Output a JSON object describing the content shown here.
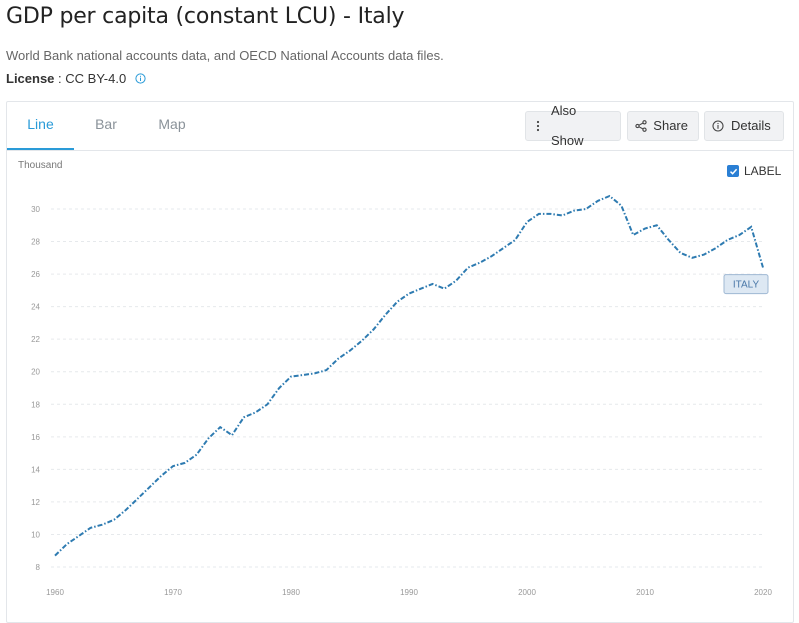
{
  "title": "GDP per capita (constant LCU) - Italy",
  "source": "World Bank national accounts data, and OECD National Accounts data files.",
  "license": {
    "label": "License",
    "value": "CC BY-4.0"
  },
  "tabs": [
    {
      "label": "Line",
      "active": true
    },
    {
      "label": "Bar",
      "active": false
    },
    {
      "label": "Map",
      "active": false
    }
  ],
  "toolbar": {
    "also_show_label": "Also Show",
    "share_label": "Share",
    "details_label": "Details"
  },
  "label_toggle": {
    "text": "LABEL",
    "checked": true
  },
  "colors": {
    "series": "#2e7bb1",
    "accent": "#2a9bd8",
    "label_bg": "#dde8f3"
  },
  "chart_data": {
    "type": "line",
    "ylabel": "Thousand",
    "ylim": [
      8,
      30
    ],
    "yticks": [
      8,
      10,
      12,
      14,
      16,
      18,
      20,
      22,
      24,
      26,
      28,
      30
    ],
    "xlim": [
      1960,
      2020
    ],
    "xticks": [
      1960,
      1970,
      1980,
      1990,
      2000,
      2010,
      2020
    ],
    "grid": true,
    "line_style": "dash-dot",
    "series": [
      {
        "name": "ITALY",
        "x": [
          1960,
          1961,
          1962,
          1963,
          1964,
          1965,
          1966,
          1967,
          1968,
          1969,
          1970,
          1971,
          1972,
          1973,
          1974,
          1975,
          1976,
          1977,
          1978,
          1979,
          1980,
          1981,
          1982,
          1983,
          1984,
          1985,
          1986,
          1987,
          1988,
          1989,
          1990,
          1991,
          1992,
          1993,
          1994,
          1995,
          1996,
          1997,
          1998,
          1999,
          2000,
          2001,
          2002,
          2003,
          2004,
          2005,
          2006,
          2007,
          2008,
          2009,
          2010,
          2011,
          2012,
          2013,
          2014,
          2015,
          2016,
          2017,
          2018,
          2019,
          2020
        ],
        "values": [
          8.7,
          9.4,
          9.9,
          10.4,
          10.6,
          10.9,
          11.5,
          12.2,
          12.9,
          13.6,
          14.2,
          14.4,
          14.9,
          15.9,
          16.6,
          16.1,
          17.2,
          17.5,
          18.0,
          19.0,
          19.7,
          19.8,
          19.9,
          20.1,
          20.8,
          21.3,
          21.9,
          22.6,
          23.5,
          24.3,
          24.8,
          25.1,
          25.4,
          25.1,
          25.6,
          26.4,
          26.7,
          27.1,
          27.6,
          28.1,
          29.2,
          29.7,
          29.7,
          29.6,
          29.9,
          30.0,
          30.5,
          30.8,
          30.2,
          28.4,
          28.8,
          29.0,
          28.1,
          27.3,
          27.0,
          27.2,
          27.6,
          28.1,
          28.4,
          28.9,
          26.4
        ]
      }
    ]
  }
}
